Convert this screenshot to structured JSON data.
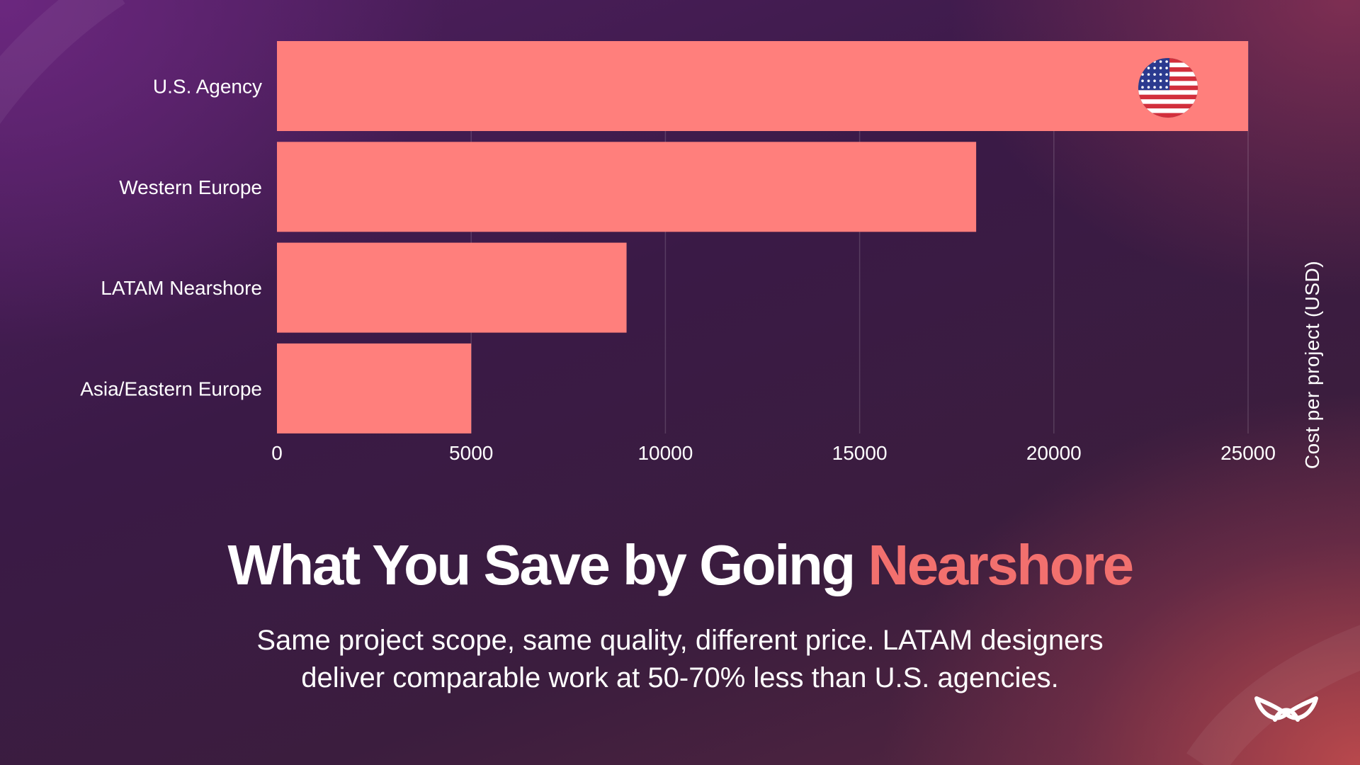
{
  "chart_data": {
    "type": "bar",
    "orientation": "horizontal",
    "categories": [
      "U.S. Agency",
      "Western Europe",
      "LATAM Nearshore",
      "Asia/Eastern Europe"
    ],
    "values": [
      25000,
      18000,
      9000,
      5000
    ],
    "x_ticks": [
      "0",
      "5000",
      "10000",
      "15000",
      "20000",
      "25000"
    ],
    "xlim": [
      0,
      25000
    ],
    "axis_title": "Cost per project (USD)",
    "bar_color": "#ff7f7c",
    "grid": true,
    "flag_icon": "us-flag-icon"
  },
  "headline": {
    "main": "What You Save by Going ",
    "accent": "Nearshore",
    "accent_color": "#f2706e"
  },
  "subtext": {
    "line1": "Same project scope, same quality, different price. LATAM designers",
    "line2": "deliver comparable work at 50-70% less than U.S. agencies."
  },
  "logo_icon": "brand-logo-icon"
}
